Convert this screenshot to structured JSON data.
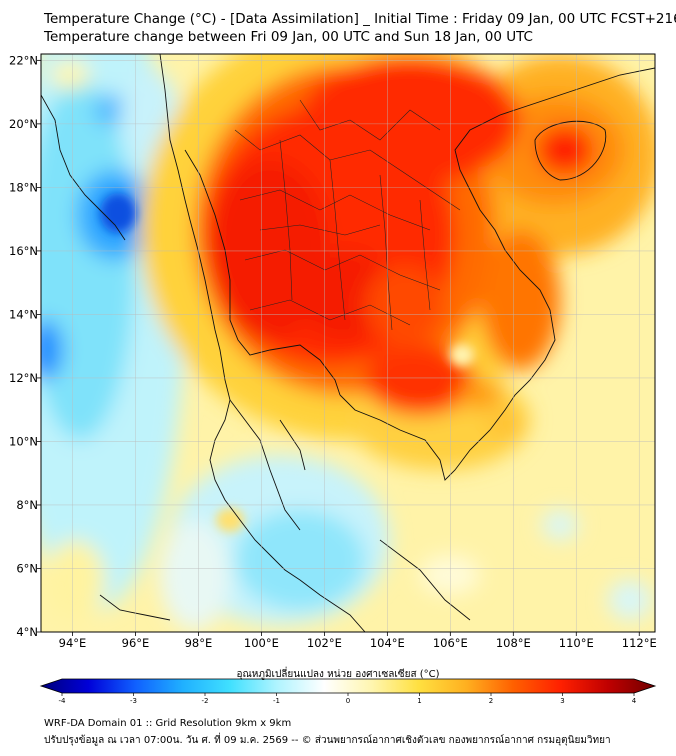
{
  "header": {
    "title_line1": "Temperature Change (°C) - [Data Assimilation] _ Initial Time : Friday 09 Jan, 00 UTC FCST+216",
    "title_line2": "Temperature change between Fri 09 Jan, 00 UTC and Sun 18 Jan, 00 UTC"
  },
  "map": {
    "lon_ticks": [
      {
        "value": 94,
        "label": "94°E"
      },
      {
        "value": 96,
        "label": "96°E"
      },
      {
        "value": 98,
        "label": "98°E"
      },
      {
        "value": 100,
        "label": "100°E"
      },
      {
        "value": 102,
        "label": "102°E"
      },
      {
        "value": 104,
        "label": "104°E"
      },
      {
        "value": 106,
        "label": "106°E"
      },
      {
        "value": 108,
        "label": "108°E"
      },
      {
        "value": 110,
        "label": "110°E"
      },
      {
        "value": 112,
        "label": "112°E"
      }
    ],
    "lat_ticks": [
      {
        "value": 22,
        "label": "22°N"
      },
      {
        "value": 20,
        "label": "20°N"
      },
      {
        "value": 18,
        "label": "18°N"
      },
      {
        "value": 16,
        "label": "16°N"
      },
      {
        "value": 14,
        "label": "14°N"
      },
      {
        "value": 12,
        "label": "12°N"
      },
      {
        "value": 10,
        "label": "10°N"
      },
      {
        "value": 8,
        "label": "8°N"
      },
      {
        "value": 6,
        "label": "6°N"
      },
      {
        "value": 4,
        "label": "4°N"
      }
    ],
    "lon_range": [
      93.0,
      112.5
    ],
    "lat_range": [
      4.0,
      22.2
    ],
    "grid": true
  },
  "colorbar": {
    "label": "อุณหภูมิเปลี่ยนแปลง หน่วย องศาเซลเซียส (°C)",
    "min": -4,
    "max": 4,
    "ticks": [
      {
        "value": -4,
        "label": "-4"
      },
      {
        "value": -3,
        "label": "-3"
      },
      {
        "value": -2,
        "label": "-2"
      },
      {
        "value": -1,
        "label": "-1"
      },
      {
        "value": 0,
        "label": "0"
      },
      {
        "value": 1,
        "label": "1"
      },
      {
        "value": 2,
        "label": "2"
      },
      {
        "value": 3,
        "label": "3"
      },
      {
        "value": 4,
        "label": "4"
      }
    ],
    "colors": [
      "#00007a",
      "#0000d8",
      "#1060ff",
      "#20b0ff",
      "#40e0ff",
      "#b0f4ff",
      "#ffffff",
      "#fff6b0",
      "#ffe040",
      "#ffb020",
      "#ff6000",
      "#ff2000",
      "#c00000",
      "#700000"
    ]
  },
  "footer": {
    "line1": "WRF-DA Domain 01 :: Grid Resolution 9km x 9km",
    "line2": "ปรับปรุงข้อมูล ณ เวลา 07:00น. วัน ศ. ที่ 09 ม.ค. 2569 -- © ส่วนพยากรณ์อากาศเชิงตัวเลข กองพยากรณ์อากาศ กรมอุตุนิยมวิทยา"
  }
}
